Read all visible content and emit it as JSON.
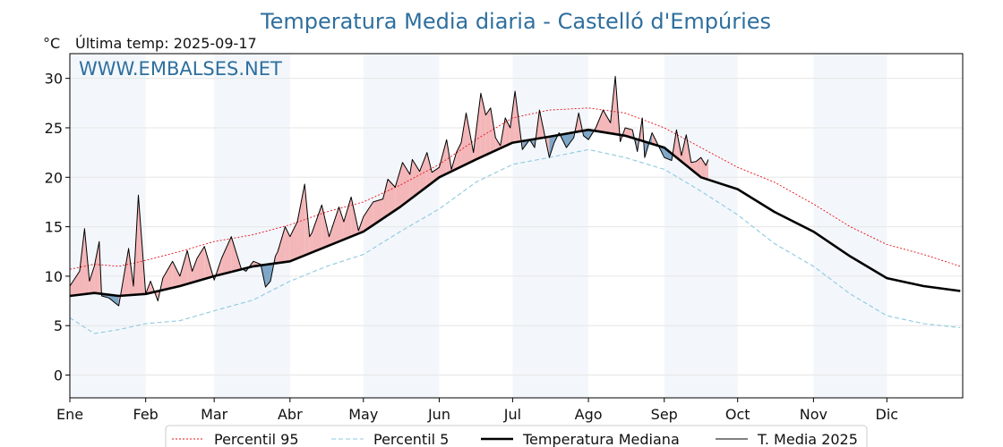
{
  "chart_data": {
    "type": "line",
    "title": "Temperatura Media diaria - Castelló d'Empúries",
    "unit": "°C",
    "last_temp_label": "Última temp: 2025-09-17",
    "watermark": "WWW.EMBALSES.NET",
    "ylim": [
      -2.3,
      32.5
    ],
    "y_ticks": [
      0,
      5,
      10,
      15,
      20,
      25,
      30
    ],
    "x_range_days": [
      0,
      365
    ],
    "months": [
      {
        "label": "Ene",
        "day": 0
      },
      {
        "label": "Feb",
        "day": 31
      },
      {
        "label": "Mar",
        "day": 59
      },
      {
        "label": "Abr",
        "day": 90
      },
      {
        "label": "May",
        "day": 120
      },
      {
        "label": "Jun",
        "day": 151
      },
      {
        "label": "Jul",
        "day": 181
      },
      {
        "label": "Ago",
        "day": 212
      },
      {
        "label": "Sep",
        "day": 243
      },
      {
        "label": "Oct",
        "day": 273
      },
      {
        "label": "Nov",
        "day": 304
      },
      {
        "label": "Dic",
        "day": 334
      }
    ],
    "grid": true,
    "legend_position": "bottom",
    "series": [
      {
        "key": "p95",
        "name": "Percentil 95",
        "color": "#e8121a",
        "style": "dotted",
        "x": [
          0,
          10,
          20,
          31,
          45,
          59,
          75,
          90,
          105,
          120,
          135,
          151,
          166,
          181,
          196,
          212,
          227,
          243,
          258,
          273,
          288,
          304,
          319,
          334,
          349,
          364
        ],
        "y": [
          10.7,
          11.2,
          11.0,
          11.6,
          12.5,
          13.5,
          14.2,
          15.2,
          16.5,
          17.5,
          19.2,
          21.3,
          23.8,
          26.0,
          26.8,
          27.0,
          26.5,
          25.0,
          23.0,
          21.0,
          19.5,
          17.3,
          15.0,
          13.2,
          12.2,
          11.0
        ]
      },
      {
        "key": "p5",
        "name": "Percentil 5",
        "color": "#8ec9e0",
        "style": "dashed",
        "x": [
          0,
          10,
          20,
          31,
          45,
          59,
          75,
          90,
          105,
          120,
          135,
          151,
          166,
          181,
          196,
          212,
          227,
          243,
          258,
          273,
          288,
          304,
          319,
          334,
          349,
          364
        ],
        "y": [
          5.8,
          4.2,
          4.6,
          5.2,
          5.5,
          6.5,
          7.6,
          9.5,
          11.0,
          12.2,
          14.5,
          16.8,
          19.5,
          21.3,
          22.0,
          22.8,
          22.0,
          20.8,
          18.6,
          16.2,
          13.3,
          11.0,
          8.2,
          6.0,
          5.2,
          4.8
        ]
      },
      {
        "key": "median",
        "name": "Temperatura Mediana",
        "color": "#000000",
        "style": "bold",
        "x": [
          0,
          10,
          20,
          31,
          45,
          59,
          75,
          90,
          105,
          120,
          135,
          151,
          166,
          181,
          196,
          212,
          227,
          243,
          258,
          273,
          288,
          304,
          319,
          334,
          349,
          364
        ],
        "y": [
          8.0,
          8.3,
          8.0,
          8.2,
          9.0,
          10.0,
          11.0,
          11.5,
          13.0,
          14.5,
          17.0,
          20.0,
          21.8,
          23.5,
          24.1,
          24.8,
          24.2,
          23.0,
          20.0,
          18.8,
          16.5,
          14.5,
          12.0,
          9.8,
          9.0,
          8.5
        ]
      },
      {
        "key": "t2025",
        "name": "T. Media 2025",
        "color": "#000000",
        "style": "thin",
        "x": [
          0,
          4,
          6,
          8,
          10,
          12,
          13,
          16,
          20,
          24,
          26,
          28,
          31,
          33,
          36,
          38,
          42,
          45,
          48,
          50,
          52,
          55,
          59,
          62,
          66,
          70,
          72,
          75,
          78,
          80,
          82,
          84,
          85,
          88,
          90,
          93,
          96,
          98,
          99,
          103,
          106,
          110,
          112,
          115,
          118,
          120,
          124,
          128,
          130,
          133,
          136,
          139,
          140,
          143,
          146,
          148,
          151,
          154,
          156,
          158,
          160,
          162,
          165,
          168,
          170,
          172,
          174,
          176,
          178,
          180,
          182,
          185,
          188,
          190,
          192,
          196,
          198,
          200,
          203,
          206,
          208,
          210,
          212,
          215,
          218,
          221,
          223,
          225,
          227,
          230,
          232,
          234,
          235,
          238,
          240,
          243,
          246,
          248,
          250,
          252,
          254,
          256,
          258,
          260,
          261
        ],
        "y": [
          9.0,
          10.5,
          14.8,
          9.5,
          11.0,
          13.5,
          8.0,
          7.8,
          7.0,
          12.8,
          9.0,
          18.2,
          8.2,
          9.5,
          7.5,
          9.8,
          11.5,
          10.0,
          12.6,
          10.5,
          11.8,
          13.0,
          9.6,
          11.8,
          14.0,
          10.8,
          10.5,
          11.5,
          11.2,
          8.9,
          9.5,
          12.0,
          12.5,
          15.0,
          14.0,
          15.5,
          19.3,
          14.0,
          14.4,
          17.2,
          14.0,
          17.0,
          15.5,
          18.0,
          14.6,
          16.0,
          17.5,
          17.8,
          19.8,
          19.0,
          21.5,
          20.3,
          21.8,
          20.6,
          22.5,
          20.5,
          21.0,
          23.8,
          20.8,
          22.5,
          23.5,
          26.5,
          22.5,
          28.5,
          26.3,
          27.0,
          24.0,
          23.2,
          26.0,
          25.0,
          28.7,
          22.8,
          23.8,
          23.0,
          26.8,
          22.0,
          23.5,
          24.5,
          23.0,
          24.0,
          26.5,
          24.2,
          23.8,
          25.0,
          26.8,
          25.5,
          30.2,
          23.6,
          25.0,
          24.8,
          22.6,
          26.0,
          22.0,
          24.5,
          23.5,
          22.0,
          21.7,
          24.8,
          22.2,
          24.3,
          21.5,
          21.6,
          22.0,
          21.2,
          21.8
        ]
      }
    ]
  }
}
